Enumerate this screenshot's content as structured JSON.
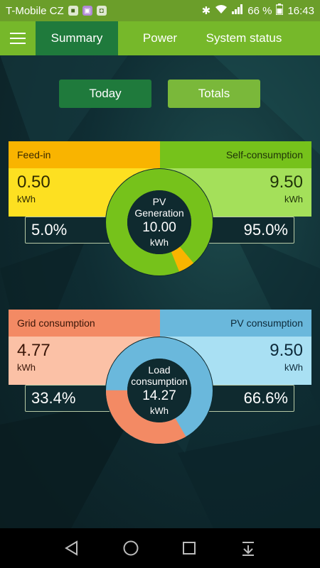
{
  "statusbar": {
    "carrier": "T-Mobile CZ",
    "battery": "66 %",
    "time": "16:43"
  },
  "tabs": [
    "Summary",
    "Power",
    "System status"
  ],
  "range": {
    "today": "Today",
    "totals": "Totals"
  },
  "generation": {
    "left_header": "Feed-in",
    "right_header": "Self-consumption",
    "left_value": "0.50",
    "left_unit": "kWh",
    "right_value": "9.50",
    "right_unit": "kWh",
    "left_pct": "5.0%",
    "right_pct": "95.0%",
    "center_title_1": "PV",
    "center_title_2": "Generation",
    "center_value": "10.00",
    "center_unit": "kWh",
    "fraction_feed_in": 0.05,
    "colors": {
      "left_header": "#f9b400",
      "left_box": "#fde021",
      "right_header": "#76c21b",
      "right_box": "#a4e05a"
    }
  },
  "consumption": {
    "left_header": "Grid consumption",
    "right_header": "PV consumption",
    "left_value": "4.77",
    "left_unit": "kWh",
    "right_value": "9.50",
    "right_unit": "kWh",
    "left_pct": "33.4%",
    "right_pct": "66.6%",
    "center_title_1": "Load",
    "center_title_2": "consumption",
    "center_value": "14.27",
    "center_unit": "kWh",
    "fraction_grid": 0.334,
    "colors": {
      "left_header": "#f38a64",
      "left_box": "#fbc1a6",
      "right_header": "#6ab8dc",
      "right_box": "#a9e0f3"
    }
  },
  "navbar": {
    "icons": [
      "back-icon",
      "home-icon",
      "recents-icon",
      "notification-pull-icon"
    ]
  }
}
